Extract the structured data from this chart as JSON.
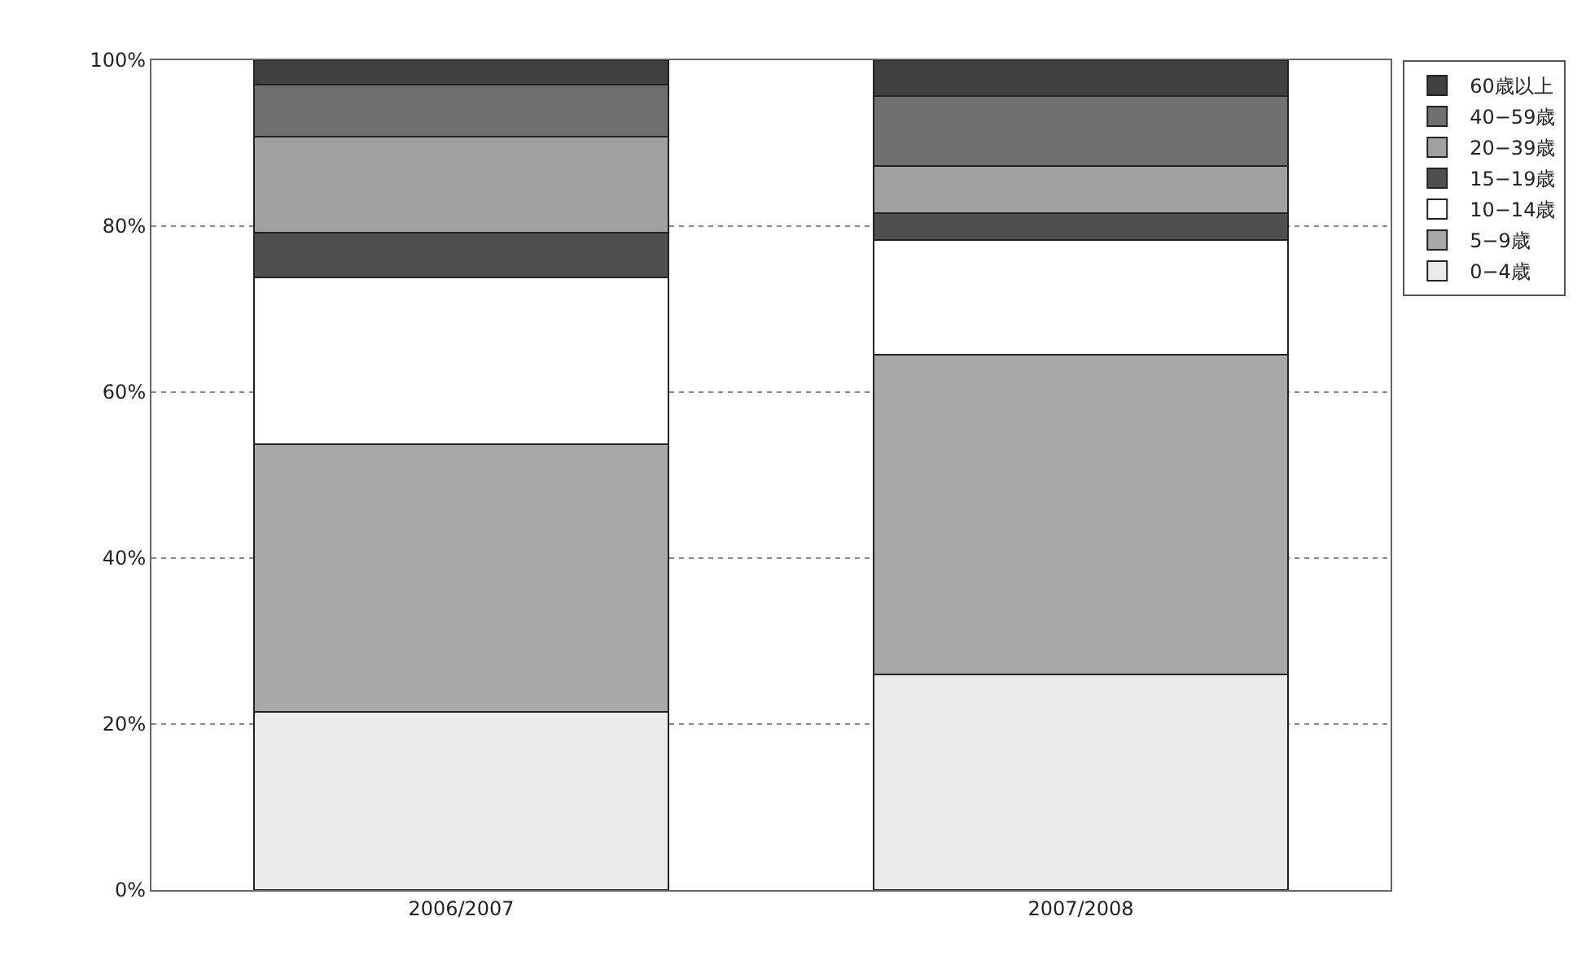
{
  "chart_data": {
    "type": "bar",
    "stacked": true,
    "categories": [
      "2006/2007",
      "2007/2008"
    ],
    "series": [
      {
        "name": "0−4歳",
        "color": "#ebebeb",
        "values": [
          21.5,
          26.0
        ]
      },
      {
        "name": "5−9歳",
        "color": "#a8a8a8",
        "values": [
          32.2,
          38.5
        ]
      },
      {
        "name": "10−14歳",
        "color": "#ffffff",
        "values": [
          20.1,
          13.8
        ]
      },
      {
        "name": "15−19歳",
        "color": "#505050",
        "values": [
          5.4,
          3.3
        ]
      },
      {
        "name": "20−39歳",
        "color": "#a0a0a0",
        "values": [
          11.6,
          5.7
        ]
      },
      {
        "name": "40−59歳",
        "color": "#707070",
        "values": [
          6.3,
          8.4
        ]
      },
      {
        "name": "60歳以上",
        "color": "#404040",
        "values": [
          2.9,
          4.3
        ]
      }
    ],
    "ylim": [
      0,
      100
    ],
    "yticks": [
      {
        "value": 0,
        "label": "0%"
      },
      {
        "value": 20,
        "label": "20%"
      },
      {
        "value": 40,
        "label": "40%"
      },
      {
        "value": 60,
        "label": "60%"
      },
      {
        "value": 80,
        "label": "80%"
      },
      {
        "value": 100,
        "label": "100%"
      }
    ],
    "grid": "y",
    "legend": "top right"
  }
}
